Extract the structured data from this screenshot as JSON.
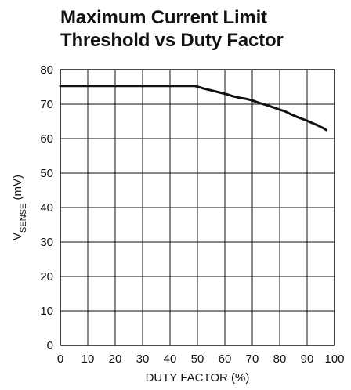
{
  "chart_data": {
    "type": "line",
    "title": [
      "Maximum Current Limit",
      "Threshold vs Duty Factor"
    ],
    "xlabel": "DUTY FACTOR (%)",
    "ylabel_main": "V",
    "ylabel_sub": "SENSE",
    "ylabel_unit": " (mV)",
    "xlim": [
      0,
      100
    ],
    "ylim": [
      0,
      80
    ],
    "xticks": [
      "0",
      "10",
      "20",
      "30",
      "40",
      "50",
      "60",
      "70",
      "80",
      "90",
      "100"
    ],
    "yticks": [
      "0",
      "10",
      "20",
      "30",
      "40",
      "50",
      "60",
      "70",
      "80"
    ],
    "grid": true,
    "series": [
      {
        "x": [
          0,
          10,
          20,
          30,
          40,
          49,
          52,
          55,
          58,
          61,
          63,
          65,
          68,
          70,
          72,
          75,
          78,
          80,
          82,
          84,
          86,
          88,
          90,
          92,
          94,
          96,
          97
        ],
        "y": [
          75.3,
          75.3,
          75.3,
          75.3,
          75.3,
          75.3,
          74.6,
          74.0,
          73.4,
          72.8,
          72.3,
          71.9,
          71.5,
          71.1,
          70.5,
          69.8,
          69.0,
          68.4,
          67.9,
          67.1,
          66.4,
          65.8,
          65.2,
          64.5,
          63.8,
          63.0,
          62.5
        ]
      }
    ],
    "line_color": "#111111"
  }
}
